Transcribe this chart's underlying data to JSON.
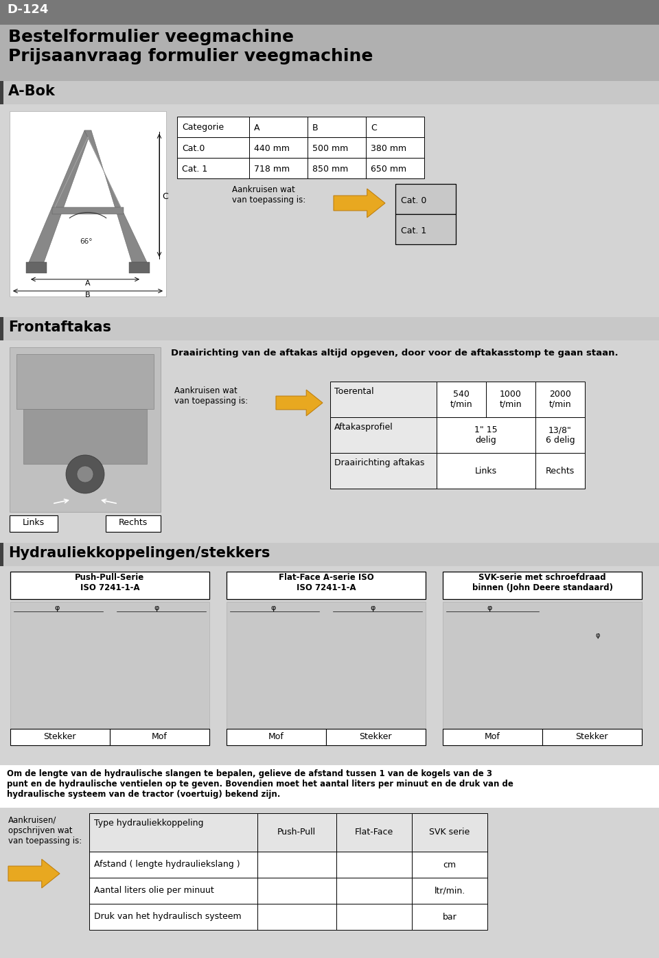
{
  "title_bar": "D-124",
  "main_title1": "Bestelformulier veegmachine",
  "main_title2": "Prijsaanvraag formulier veegmachine",
  "section_abok": "A-Bok",
  "section_front": "Frontaftakas",
  "section_hydraulic": "Hydrauliekkoppelingen/stekkers",
  "abok_table_headers": [
    "Categorie",
    "A",
    "B",
    "C"
  ],
  "abok_table_rows": [
    [
      "Cat.0",
      "440 mm",
      "500 mm",
      "380 mm"
    ],
    [
      "Cat. 1",
      "718 mm",
      "850 mm",
      "650 mm"
    ]
  ],
  "aankruisen_text": "Aankruisen wat\nvan toepassing is:",
  "cat0_label": "Cat. 0",
  "cat1_label": "Cat. 1",
  "front_instruction": "Draairichting van de aftakas altijd opgeven, door voor de aftakasstomp te gaan staan.",
  "row1_label": "Toerental",
  "row1_cols": [
    "540\nt/min",
    "1000\nt/min",
    "2000\nt/min"
  ],
  "row2_label": "Aftakasprofiel",
  "row2_col1": "1\" 15\ndelig",
  "row2_col3": "13/8\"\n6 delig",
  "row3_label": "Draairichting aftakas",
  "row3_col1": "Links",
  "row3_col3": "Rechts",
  "links_label": "Links",
  "rechts_label": "Rechts",
  "push_pull_title": "Push-Pull-Serie\nISO 7241-1-A",
  "flat_face_title": "Flat-Face A-serie ISO\nISO 7241-1-A",
  "svk_title": "SVK-serie met schroefdraad\nbinnen (John Deere standaard)",
  "stekker_label": "Stekker",
  "mof_label": "Mof",
  "hydraulic_note": "Om de lengte van de hydraulische slangen te bepalen, gelieve de afstand tussen 1 van de kogels van de 3\npunt en de hydraulische ventielen op te geven. Bovendien moet het aantal liters per minuut en de druk van de\nhydraulische systeem van de tractor (voertuig) bekend zijn.",
  "aankruisen2_text": "Aankruisen/\nopschrijven wat\nvan toepassing is:",
  "hyd_table_headers": [
    "Type hydrauliekkoppeling",
    "Push-Pull",
    "Flat-Face",
    "SVK serie"
  ],
  "hyd_table_rows": [
    [
      "Afstand ( lengte hydrauliekslang )",
      "",
      "",
      "cm"
    ],
    [
      "Aantal liters olie per minuut",
      "",
      "",
      "ltr/min."
    ],
    [
      "Druk van het hydraulisch systeem",
      "",
      "",
      "bar"
    ]
  ],
  "bg_light": "#d4d4d4",
  "bg_section_header": "#c8c8c8",
  "bg_title": "#b0b0b0",
  "bg_topbar": "#787878",
  "arrow_color": "#e8a820",
  "arrow_edge": "#c08010",
  "cat_box_bg": "#c8c8c8",
  "table_cell_bg": "#e8e8e8",
  "white": "#ffffff",
  "black": "#000000"
}
